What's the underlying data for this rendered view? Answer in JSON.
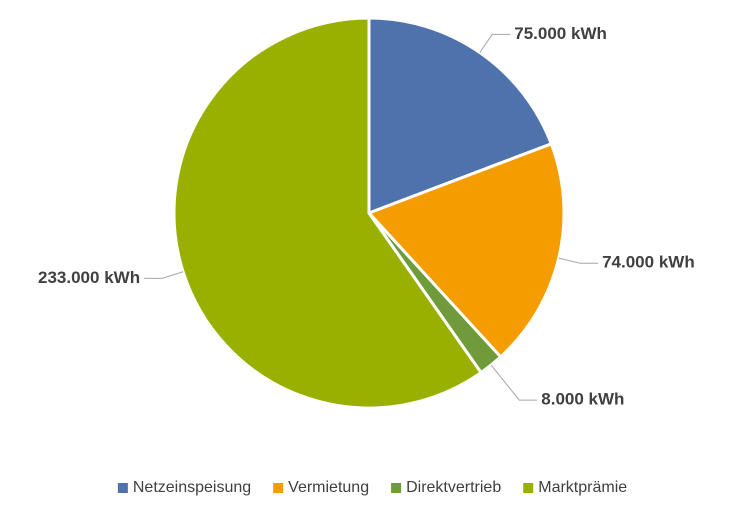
{
  "chart_data": {
    "type": "pie",
    "categories": [
      "Netzeinspeisung",
      "Vermietung",
      "Direktvertrieb",
      "Marktprämie"
    ],
    "values": [
      75000,
      74000,
      8000,
      233000
    ],
    "value_labels": [
      "75.000 kWh",
      "74.000 kWh",
      "8.000 kWh",
      "233.000 kWh"
    ],
    "colors": [
      "#4e72ac",
      "#f59c00",
      "#6f9b3a",
      "#99b000"
    ],
    "legend": "bottom"
  }
}
